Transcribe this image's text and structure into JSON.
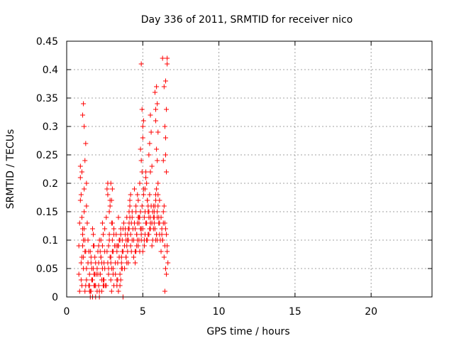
{
  "chart_data": {
    "type": "scatter",
    "title": "Day 336 of 2011, SRMTID for receiver nico",
    "xlabel": "GPS time / hours",
    "ylabel": "SRMTID / TECUs",
    "xlim": [
      0,
      24
    ],
    "ylim": [
      0,
      0.45
    ],
    "x_ticks": [
      0,
      5,
      10,
      15,
      20
    ],
    "y_ticks": [
      0,
      0.05,
      0.1,
      0.15,
      0.2,
      0.25,
      0.3,
      0.35,
      0.4,
      0.45
    ],
    "x_tick_labels": [
      "0",
      "5",
      "10",
      "15",
      "20"
    ],
    "y_tick_labels": [
      "0",
      "0.05",
      "0.1",
      "0.15",
      "0.2",
      "0.25",
      "0.3",
      "0.35",
      "0.4",
      "0.45"
    ],
    "grid": true,
    "marker": "+",
    "color": "#ff0000",
    "series": [
      {
        "x": [
          0.8,
          0.85,
          0.9,
          0.95,
          1.0,
          1.05,
          1.1,
          1.15,
          1.2,
          1.25,
          1.3,
          1.35,
          0.8,
          0.9,
          1.0,
          1.1,
          1.2,
          1.3,
          0.85,
          0.95,
          1.05,
          1.15,
          1.25,
          0.9,
          1.0,
          1.1,
          1.2,
          1.3,
          0.95,
          1.05,
          1.15,
          1.4,
          1.45,
          1.5,
          1.55,
          1.6,
          1.65,
          1.7,
          1.75,
          1.8,
          1.85,
          1.9,
          1.95,
          1.4,
          1.5,
          1.6,
          1.7,
          1.8,
          1.9,
          1.45,
          1.55,
          1.65,
          1.75,
          1.85,
          1.5,
          1.6,
          1.7,
          1.8,
          1.9,
          1.55,
          1.65,
          1.75,
          1.85,
          2.0,
          2.05,
          2.1,
          2.15,
          2.2,
          2.25,
          2.3,
          2.35,
          2.4,
          2.45,
          2.5,
          2.55,
          2.0,
          2.1,
          2.2,
          2.3,
          2.4,
          2.5,
          2.05,
          2.15,
          2.25,
          2.35,
          2.45,
          2.1,
          2.2,
          2.3,
          2.4,
          2.5,
          2.15,
          2.25,
          2.35,
          2.45,
          2.6,
          2.65,
          2.7,
          2.75,
          2.8,
          2.85,
          2.9,
          2.95,
          3.0,
          3.05,
          3.1,
          3.15,
          2.6,
          2.7,
          2.8,
          2.9,
          3.0,
          3.1,
          2.65,
          2.75,
          2.85,
          2.95,
          3.05,
          2.7,
          2.8,
          2.9,
          3.0,
          3.1,
          2.75,
          2.85,
          2.95,
          3.05,
          3.2,
          3.25,
          3.3,
          3.35,
          3.4,
          3.45,
          3.5,
          3.55,
          3.6,
          3.65,
          3.7,
          3.75,
          3.2,
          3.3,
          3.4,
          3.5,
          3.6,
          3.7,
          3.25,
          3.35,
          3.45,
          3.55,
          3.65,
          3.3,
          3.4,
          3.5,
          3.6,
          3.7,
          3.35,
          3.45,
          3.55,
          3.65,
          3.8,
          3.85,
          3.9,
          3.95,
          4.0,
          4.05,
          4.1,
          4.15,
          4.2,
          4.25,
          4.3,
          4.35,
          3.8,
          3.9,
          4.0,
          4.1,
          4.2,
          4.3,
          3.85,
          3.95,
          4.05,
          4.15,
          4.25,
          3.9,
          4.0,
          4.1,
          4.2,
          4.3,
          3.95,
          4.05,
          4.15,
          4.4,
          4.45,
          4.5,
          4.55,
          4.6,
          4.65,
          4.7,
          4.75,
          4.8,
          4.85,
          4.9,
          4.95,
          4.4,
          4.5,
          4.6,
          4.7,
          4.8,
          4.9,
          4.45,
          4.55,
          4.65,
          4.75,
          4.85,
          4.5,
          4.6,
          4.7,
          4.8,
          4.9,
          4.55,
          4.65,
          4.75,
          5.0,
          5.05,
          5.1,
          5.15,
          5.2,
          5.25,
          5.3,
          5.35,
          5.4,
          5.45,
          5.5,
          5.55,
          5.0,
          5.1,
          5.2,
          5.3,
          5.4,
          5.5,
          5.05,
          5.15,
          5.25,
          5.35,
          5.45,
          5.1,
          5.2,
          5.3,
          5.4,
          5.5,
          5.15,
          5.25,
          5.35,
          5.6,
          5.65,
          5.7,
          5.75,
          5.8,
          5.85,
          5.9,
          5.95,
          6.0,
          6.05,
          6.1,
          6.15,
          5.6,
          5.7,
          5.8,
          5.9,
          6.0,
          6.1,
          5.65,
          5.75,
          5.85,
          5.95,
          6.05,
          5.7,
          5.8,
          5.9,
          6.0,
          6.1,
          5.75,
          5.85,
          5.95,
          6.2,
          6.25,
          6.3,
          6.35,
          6.4,
          6.45,
          6.5,
          6.55,
          6.6,
          6.65,
          6.2,
          6.3,
          6.4,
          6.5,
          6.6,
          6.25,
          6.35,
          6.45,
          6.55,
          1.1,
          1.15,
          1.2,
          1.25,
          1.0,
          1.05,
          1.3,
          2.9,
          3.0,
          2.95,
          4.9,
          4.95,
          5.0,
          4.85,
          4.9,
          5.0,
          5.05,
          4.95,
          5.8,
          5.85,
          5.9,
          5.95,
          6.0,
          5.9,
          5.95,
          5.85,
          6.3,
          6.4,
          6.5,
          6.55,
          6.45,
          6.5,
          6.6,
          6.35,
          6.5,
          6.55,
          6.6,
          6.45,
          5.5,
          5.45,
          5.6,
          5.55,
          5.5,
          5.4
        ],
        "y": [
          0.09,
          0.13,
          0.21,
          0.18,
          0.07,
          0.12,
          0.05,
          0.15,
          0.1,
          0.08,
          0.03,
          0.13,
          0.04,
          0.17,
          0.02,
          0.1,
          0.08,
          0.16,
          0.01,
          0.06,
          0.11,
          0.19,
          0.02,
          0.23,
          0.14,
          0.07,
          0.01,
          0.05,
          0.03,
          0.09,
          0.12,
          0.06,
          0.02,
          0.04,
          0.08,
          0.01,
          0.03,
          0.12,
          0.05,
          0.02,
          0.07,
          0.0,
          0.04,
          0.1,
          0.01,
          0.06,
          0.03,
          0.09,
          0.02,
          0.08,
          0.0,
          0.05,
          0.11,
          0.04,
          0.02,
          0.07,
          0.0,
          0.04,
          0.06,
          0.01,
          0.03,
          0.09,
          0.02,
          0.05,
          0.08,
          0.02,
          0.1,
          0.04,
          0.07,
          0.01,
          0.09,
          0.03,
          0.06,
          0.12,
          0.02,
          0.01,
          0.06,
          0.08,
          0.03,
          0.11,
          0.05,
          0.04,
          0.0,
          0.07,
          0.13,
          0.02,
          0.09,
          0.04,
          0.06,
          0.02,
          0.08,
          0.01,
          0.1,
          0.05,
          0.03,
          0.14,
          0.08,
          0.18,
          0.05,
          0.11,
          0.16,
          0.07,
          0.13,
          0.1,
          0.04,
          0.12,
          0.09,
          0.02,
          0.06,
          0.15,
          0.03,
          0.08,
          0.11,
          0.19,
          0.04,
          0.07,
          0.01,
          0.05,
          0.2,
          0.1,
          0.06,
          0.13,
          0.02,
          0.09,
          0.17,
          0.05,
          0.08,
          0.06,
          0.11,
          0.03,
          0.09,
          0.14,
          0.07,
          0.02,
          0.12,
          0.05,
          0.1,
          0.08,
          0.13,
          0.04,
          0.08,
          0.01,
          0.1,
          0.06,
          0.12,
          0.09,
          0.03,
          0.07,
          0.11,
          0.05,
          0.02,
          0.09,
          0.04,
          0.07,
          0.0,
          0.06,
          0.1,
          0.03,
          0.08,
          0.09,
          0.12,
          0.07,
          0.14,
          0.1,
          0.06,
          0.13,
          0.17,
          0.11,
          0.08,
          0.15,
          0.12,
          0.05,
          0.1,
          0.08,
          0.12,
          0.09,
          0.14,
          0.11,
          0.06,
          0.1,
          0.16,
          0.13,
          0.07,
          0.11,
          0.15,
          0.18,
          0.1,
          0.09,
          0.12,
          0.14,
          0.1,
          0.13,
          0.08,
          0.15,
          0.11,
          0.18,
          0.09,
          0.14,
          0.2,
          0.12,
          0.1,
          0.16,
          0.07,
          0.12,
          0.09,
          0.17,
          0.14,
          0.11,
          0.19,
          0.08,
          0.13,
          0.1,
          0.15,
          0.06,
          0.11,
          0.14,
          0.08,
          0.12,
          0.16,
          0.1,
          0.13,
          0.12,
          0.19,
          0.1,
          0.15,
          0.21,
          0.13,
          0.17,
          0.11,
          0.14,
          0.18,
          0.12,
          0.16,
          0.08,
          0.14,
          0.22,
          0.1,
          0.15,
          0.13,
          0.18,
          0.11,
          0.2,
          0.16,
          0.12,
          0.09,
          0.13,
          0.17,
          0.11,
          0.14,
          0.19,
          0.1,
          0.15,
          0.13,
          0.1,
          0.16,
          0.14,
          0.12,
          0.18,
          0.11,
          0.15,
          0.2,
          0.13,
          0.17,
          0.1,
          0.09,
          0.14,
          0.12,
          0.19,
          0.16,
          0.11,
          0.15,
          0.13,
          0.17,
          0.1,
          0.14,
          0.12,
          0.16,
          0.11,
          0.18,
          0.13,
          0.15,
          0.1,
          0.14,
          0.08,
          0.12,
          0.1,
          0.15,
          0.07,
          0.13,
          0.05,
          0.11,
          0.09,
          0.06,
          0.14,
          0.1,
          0.16,
          0.12,
          0.08,
          0.11,
          0.13,
          0.09,
          0.04,
          0.34,
          0.3,
          0.24,
          0.27,
          0.22,
          0.32,
          0.2,
          0.2,
          0.19,
          0.17,
          0.41,
          0.33,
          0.3,
          0.26,
          0.24,
          0.28,
          0.31,
          0.22,
          0.36,
          0.33,
          0.37,
          0.34,
          0.29,
          0.26,
          0.24,
          0.31,
          0.42,
          0.37,
          0.38,
          0.33,
          0.3,
          0.28,
          0.42,
          0.24,
          0.25,
          0.22,
          0.41,
          0.01,
          0.32,
          0.27,
          0.23,
          0.29,
          0.22,
          0.25
        ]
      }
    ]
  }
}
